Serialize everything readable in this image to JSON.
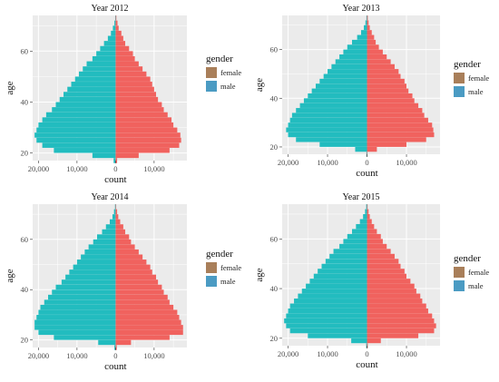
{
  "chart_data": [
    {
      "type": "bar",
      "orientation": "horizontal-pyramid",
      "title": "Year 2012",
      "xlabel": "count",
      "ylabel": "age",
      "xlim": [
        -21500,
        18500
      ],
      "ylim": [
        17,
        74
      ],
      "xticks": [
        -20000,
        -10000,
        0,
        10000
      ],
      "xtick_labels": [
        "20,000",
        "10,000",
        "0",
        "10,000"
      ],
      "yticks": [
        20,
        40,
        60
      ],
      "ytick_labels": [
        "20",
        "40",
        "60"
      ],
      "y": [
        17,
        19,
        21,
        23,
        25,
        27,
        29,
        31,
        33,
        35,
        37,
        39,
        41,
        43,
        45,
        47,
        49,
        51,
        53,
        55,
        57,
        59,
        61,
        63,
        65,
        67,
        69,
        71,
        73
      ],
      "series": [
        {
          "name": "female",
          "values": [
            400,
            6000,
            14000,
            16500,
            17000,
            16800,
            16000,
            15000,
            14500,
            13500,
            12500,
            12000,
            11000,
            10500,
            10000,
            9500,
            9000,
            8000,
            7000,
            6000,
            5000,
            4500,
            3500,
            2500,
            2000,
            1500,
            800,
            500,
            200
          ]
        },
        {
          "name": "male",
          "values": [
            -500,
            -6000,
            -16000,
            -19000,
            -20500,
            -21000,
            -20500,
            -20000,
            -19000,
            -18000,
            -16500,
            -15500,
            -14500,
            -13500,
            -12500,
            -11500,
            -10500,
            -9500,
            -8500,
            -7500,
            -6000,
            -5000,
            -4000,
            -3000,
            -2000,
            -1200,
            -700,
            -300,
            -100
          ]
        }
      ],
      "legend": {
        "title": "gender",
        "placement": "right"
      },
      "grid": true
    },
    {
      "type": "bar",
      "orientation": "horizontal-pyramid",
      "title": "Year 2013",
      "xlabel": "count",
      "ylabel": "age",
      "xlim": [
        -21500,
        18500
      ],
      "ylim": [
        17,
        74
      ],
      "xticks": [
        -20000,
        -10000,
        0,
        10000
      ],
      "xtick_labels": [
        "20,000",
        "10,000",
        "0",
        "10,000"
      ],
      "yticks": [
        20,
        40,
        60
      ],
      "ytick_labels": [
        "20",
        "40",
        "60"
      ],
      "y": [
        17,
        19,
        21,
        23,
        25,
        27,
        29,
        31,
        33,
        35,
        37,
        39,
        41,
        43,
        45,
        47,
        49,
        51,
        53,
        55,
        57,
        59,
        61,
        63,
        65,
        67,
        69,
        71,
        73
      ],
      "series": [
        {
          "name": "female",
          "values": [
            100,
            2500,
            10000,
            15000,
            17000,
            16800,
            16500,
            15500,
            14500,
            14000,
            13000,
            12000,
            11500,
            10500,
            10000,
            9500,
            8500,
            8000,
            7000,
            6000,
            5000,
            4000,
            3000,
            2200,
            1800,
            1200,
            700,
            400,
            200
          ]
        },
        {
          "name": "male",
          "values": [
            -150,
            -3000,
            -12000,
            -18000,
            -20000,
            -20500,
            -20000,
            -19500,
            -19000,
            -18000,
            -17000,
            -16000,
            -15000,
            -14000,
            -13000,
            -12000,
            -11000,
            -10000,
            -9000,
            -8000,
            -7000,
            -6000,
            -5000,
            -3800,
            -2500,
            -1500,
            -800,
            -400,
            -150
          ]
        }
      ],
      "legend": {
        "title": "gender",
        "placement": "right"
      },
      "grid": true
    },
    {
      "type": "bar",
      "orientation": "horizontal-pyramid",
      "title": "Year 2014",
      "xlabel": "count",
      "ylabel": "age",
      "xlim": [
        -21500,
        18500
      ],
      "ylim": [
        17,
        74
      ],
      "xticks": [
        -20000,
        -10000,
        0,
        10000
      ],
      "xtick_labels": [
        "20,000",
        "10,000",
        "0",
        "10,000"
      ],
      "yticks": [
        20,
        40,
        60
      ],
      "ytick_labels": [
        "20",
        "40",
        "60"
      ],
      "y": [
        17,
        19,
        21,
        23,
        25,
        27,
        29,
        31,
        33,
        35,
        37,
        39,
        41,
        43,
        45,
        47,
        49,
        51,
        53,
        55,
        57,
        59,
        61,
        63,
        65,
        67,
        69,
        71,
        73
      ],
      "series": [
        {
          "name": "female",
          "values": [
            300,
            4000,
            14000,
            17500,
            17500,
            17000,
            16500,
            16000,
            15000,
            14000,
            13500,
            12500,
            12000,
            11000,
            10500,
            9500,
            9000,
            8000,
            7000,
            6000,
            5000,
            4000,
            3500,
            2500,
            2000,
            1200,
            700,
            400,
            150
          ]
        },
        {
          "name": "male",
          "values": [
            -300,
            -4500,
            -16000,
            -20000,
            -21000,
            -21000,
            -20500,
            -20000,
            -19500,
            -18500,
            -17500,
            -16500,
            -15500,
            -14000,
            -13000,
            -12000,
            -11000,
            -10000,
            -9000,
            -8000,
            -7000,
            -5800,
            -4800,
            -3500,
            -2500,
            -1500,
            -800,
            -400,
            -150
          ]
        }
      ],
      "legend": {
        "title": "gender",
        "placement": "right"
      },
      "grid": true
    },
    {
      "type": "bar",
      "orientation": "horizontal-pyramid",
      "title": "Year 2015",
      "xlabel": "count",
      "ylabel": "age",
      "xlim": [
        -21500,
        18500
      ],
      "ylim": [
        17,
        74
      ],
      "xticks": [
        -20000,
        -10000,
        0,
        10000
      ],
      "xtick_labels": [
        "20,000",
        "10,000",
        "0",
        "10,000"
      ],
      "yticks": [
        20,
        40,
        60
      ],
      "ytick_labels": [
        "20",
        "40",
        "60"
      ],
      "y": [
        17,
        19,
        21,
        23,
        25,
        27,
        29,
        31,
        33,
        35,
        37,
        39,
        41,
        43,
        45,
        47,
        49,
        51,
        53,
        55,
        57,
        59,
        61,
        63,
        65,
        67,
        69,
        71,
        73
      ],
      "series": [
        {
          "name": "female",
          "values": [
            200,
            3500,
            13000,
            17000,
            17500,
            17000,
            16500,
            15500,
            15000,
            14000,
            13500,
            12500,
            12000,
            11000,
            10000,
            9500,
            8500,
            8000,
            7000,
            6000,
            5000,
            4000,
            3500,
            2500,
            1800,
            1200,
            700,
            400,
            150
          ]
        },
        {
          "name": "male",
          "values": [
            -200,
            -4000,
            -15000,
            -19500,
            -20500,
            -21000,
            -20500,
            -20000,
            -19500,
            -18500,
            -17500,
            -16500,
            -15500,
            -14500,
            -13500,
            -12500,
            -11500,
            -10500,
            -9500,
            -8500,
            -7000,
            -6000,
            -5000,
            -3800,
            -2800,
            -1800,
            -1000,
            -500,
            -200
          ]
        }
      ],
      "legend": {
        "title": "gender",
        "placement": "right"
      },
      "grid": true
    }
  ],
  "legend": {
    "title": "gender",
    "items": [
      {
        "label": "female",
        "color": "#a97f5a"
      },
      {
        "label": "male",
        "color": "#4b9bc3"
      }
    ]
  },
  "colors": {
    "female_bar": "#f0625e",
    "male_bar": "#22bcbf",
    "panel_background": "#ebebeb",
    "gridline": "#ffffff"
  }
}
